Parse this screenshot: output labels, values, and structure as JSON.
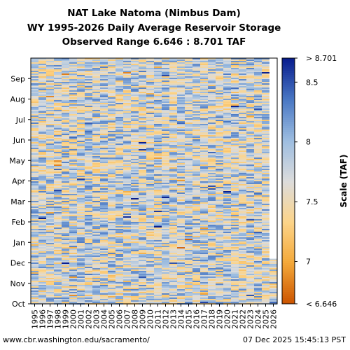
{
  "chart_data": {
    "type": "heatmap",
    "title": "NAT Lake Natoma (Nimbus Dam)",
    "subtitle": "WY 1995-2026 Daily Average Reservoir Storage",
    "subtitle2": "Observed Range 6.646 : 8.701 TAF",
    "x_tick_labels": [
      "1995",
      "1996",
      "1997",
      "1998",
      "1999",
      "2000",
      "2001",
      "2002",
      "2003",
      "2004",
      "2005",
      "2006",
      "2007",
      "2008",
      "2009",
      "2010",
      "2011",
      "2012",
      "2013",
      "2014",
      "2015",
      "2016",
      "2017",
      "2018",
      "2019",
      "2020",
      "2021",
      "2022",
      "2023",
      "2024",
      "2025",
      "2026"
    ],
    "y_tick_labels": [
      "Oct",
      "Nov",
      "Dec",
      "Jan",
      "Feb",
      "Mar",
      "Apr",
      "May",
      "Jun",
      "Jul",
      "Aug",
      "Sep"
    ],
    "colorbar": {
      "label": "Scale (TAF)",
      "tick_labels": [
        "> 8.701",
        "8.5",
        "8",
        "7.5",
        "7",
        "< 6.646"
      ],
      "tick_values": [
        8.701,
        8.5,
        8.0,
        7.5,
        7.0,
        6.646
      ],
      "range": [
        6.646,
        8.701
      ],
      "colors": [
        "#cc5500",
        "#f4a93a",
        "#fcd48a",
        "#dcdcdc",
        "#9dbde0",
        "#4a78c4",
        "#0a1f8f"
      ]
    },
    "typical_value_range": [
      7.2,
      8.3
    ]
  },
  "footer": {
    "left": "www.cbr.washington.edu/sacramento/",
    "right": "07 Dec 2025 15:45:13 PST"
  }
}
